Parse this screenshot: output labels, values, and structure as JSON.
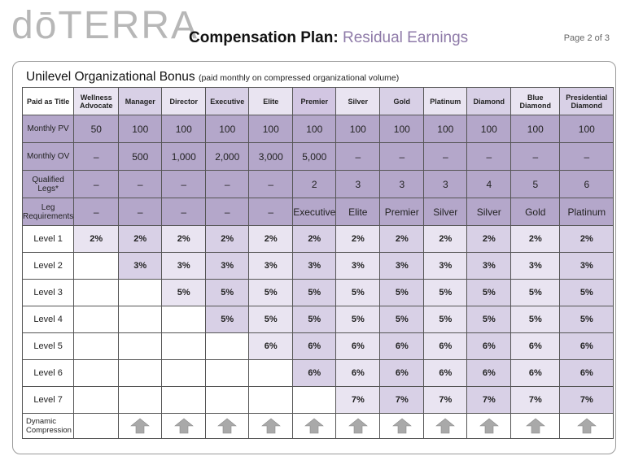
{
  "logo": "dōTERRA",
  "title": {
    "bold": "Compensation Plan:",
    "light": "Residual Earnings"
  },
  "page_number": "Page 2 of 3",
  "section": {
    "title": "Unilevel Organizational Bonus",
    "note": "(paid monthly on compressed organizational volume)"
  },
  "table": {
    "corner": "Paid as Title",
    "ranks": [
      "Wellness Advocate",
      "Manager",
      "Director",
      "Executive",
      "Elite",
      "Premier",
      "Silver",
      "Gold",
      "Platinum",
      "Diamond",
      "Blue Diamond",
      "Presidential Diamond"
    ],
    "rows": [
      {
        "label": "Monthly PV",
        "values": [
          "50",
          "100",
          "100",
          "100",
          "100",
          "100",
          "100",
          "100",
          "100",
          "100",
          "100",
          "100"
        ]
      },
      {
        "label": "Monthly OV",
        "values": [
          "–",
          "500",
          "1,000",
          "2,000",
          "3,000",
          "5,000",
          "–",
          "–",
          "–",
          "–",
          "–",
          "–"
        ]
      },
      {
        "label": "Qualified Legs*",
        "values": [
          "–",
          "–",
          "–",
          "–",
          "–",
          "2",
          "3",
          "3",
          "3",
          "4",
          "5",
          "6"
        ]
      },
      {
        "label": "Leg Requirements",
        "values": [
          "–",
          "–",
          "–",
          "–",
          "–",
          "Executive",
          "Elite",
          "Premier",
          "Silver",
          "Silver",
          "Gold",
          "Platinum"
        ]
      }
    ],
    "levels": [
      {
        "label": "Level 1",
        "start": 0,
        "pct": "2%"
      },
      {
        "label": "Level 2",
        "start": 1,
        "pct": "3%"
      },
      {
        "label": "Level 3",
        "start": 2,
        "pct": "5%"
      },
      {
        "label": "Level 4",
        "start": 3,
        "pct": "5%"
      },
      {
        "label": "Level 5",
        "start": 4,
        "pct": "6%"
      },
      {
        "label": "Level 6",
        "start": 5,
        "pct": "6%"
      },
      {
        "label": "Level 7",
        "start": 6,
        "pct": "7%"
      }
    ],
    "compression_label": "Dynamic Compression",
    "compression_icon": "up-arrow-icon"
  },
  "colors": {
    "header_dark": "#b4a7ca",
    "cell_light": "#e9e4f1",
    "cell_medium": "#d8d0e6",
    "accent": "#8e7aa8"
  }
}
